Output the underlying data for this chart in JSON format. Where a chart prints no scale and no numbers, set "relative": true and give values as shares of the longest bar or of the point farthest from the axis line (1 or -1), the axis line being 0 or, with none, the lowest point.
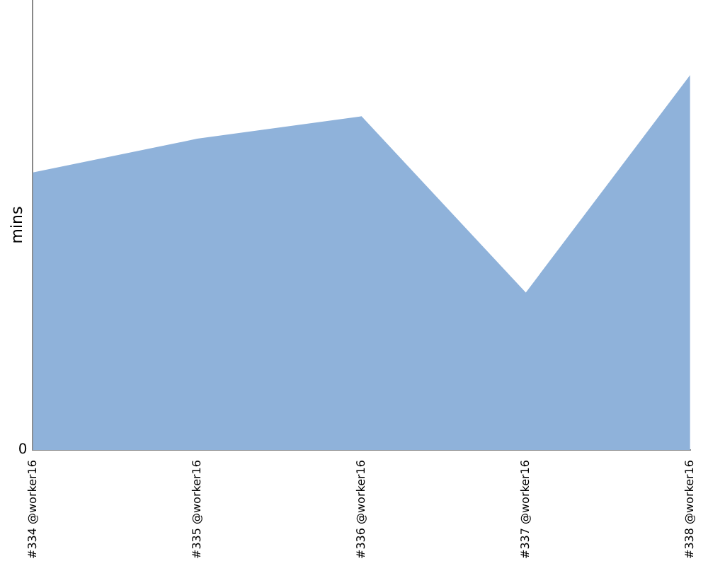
{
  "chart_data": {
    "type": "area",
    "ylabel": "mins",
    "relative": true,
    "categories": [
      "#334 @worker16",
      "#335 @worker16",
      "#336 @worker16",
      "#337 @worker16",
      "#338 @worker16"
    ],
    "series": [
      {
        "color": "#8fb2da",
        "values": [
          0.74,
          0.83,
          0.89,
          0.42,
          1
        ]
      }
    ],
    "annotations": [
      "0"
    ],
    "grid": false,
    "legend": false
  }
}
